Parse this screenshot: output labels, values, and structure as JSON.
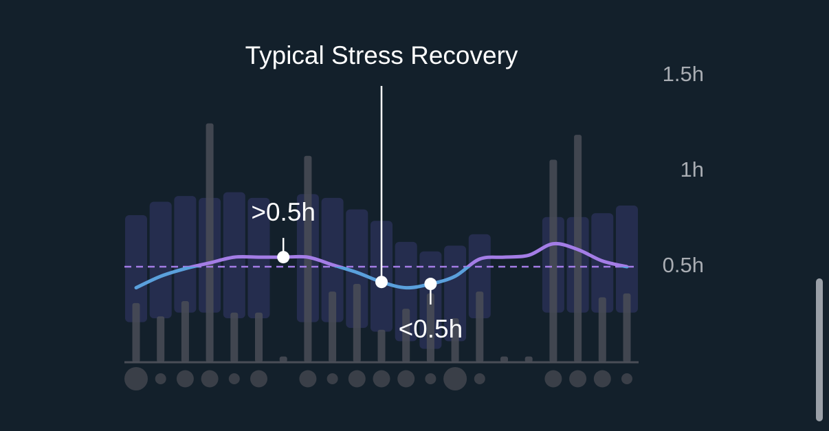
{
  "chart_data": {
    "type": "stress-recovery",
    "ylim": [
      0,
      1.5
    ],
    "yticks": [
      {
        "value": 0.5,
        "label": "0.5h"
      },
      {
        "value": 1,
        "label": "1h"
      },
      {
        "value": 1.5,
        "label": "1.5h"
      }
    ],
    "threshold": 0.5,
    "bars": {
      "color": "#4a4e57",
      "values": [
        0.31,
        0.24,
        0.32,
        1.25,
        0.26,
        0.26,
        0.03,
        1.08,
        0.37,
        0.41,
        0.17,
        0.28,
        0.36,
        0.23,
        0.37,
        0.03,
        0.03,
        1.06,
        1.19,
        0.34,
        0.36
      ]
    },
    "ranges": {
      "color": "#6a5ccf",
      "high": [
        0.77,
        0.84,
        0.87,
        0.86,
        0.89,
        0.86,
        null,
        0.88,
        0.86,
        0.8,
        0.74,
        0.63,
        0.58,
        0.61,
        0.67,
        null,
        null,
        0.76,
        0.76,
        0.78,
        0.82
      ],
      "low": [
        0.21,
        0.23,
        0.26,
        0.26,
        0.23,
        0.23,
        null,
        0.21,
        0.21,
        0.18,
        0.16,
        0.11,
        0.07,
        0.11,
        0.23,
        null,
        null,
        0.26,
        0.26,
        0.26,
        0.26
      ]
    },
    "line": {
      "color_above": "#a47de6",
      "color_below": "#5aa0dc",
      "values": [
        0.39,
        0.45,
        0.49,
        0.52,
        0.55,
        0.55,
        0.55,
        0.55,
        0.51,
        0.47,
        0.42,
        0.39,
        0.41,
        0.45,
        0.54,
        0.55,
        0.56,
        0.62,
        0.59,
        0.53,
        0.5
      ]
    },
    "dots": {
      "color": "#3a3f48",
      "values": [
        3,
        1,
        2,
        2,
        1,
        2,
        null,
        2,
        1,
        2,
        2,
        2,
        1,
        3,
        1,
        null,
        null,
        2,
        2,
        2,
        1
      ]
    },
    "annotations": [
      {
        "text": ">0.5h",
        "index": 6,
        "position": "above"
      },
      {
        "text": "Typical Stress Recovery",
        "index": 10,
        "position": "title"
      },
      {
        "text": "<0.5h",
        "index": 12,
        "position": "below"
      }
    ]
  }
}
